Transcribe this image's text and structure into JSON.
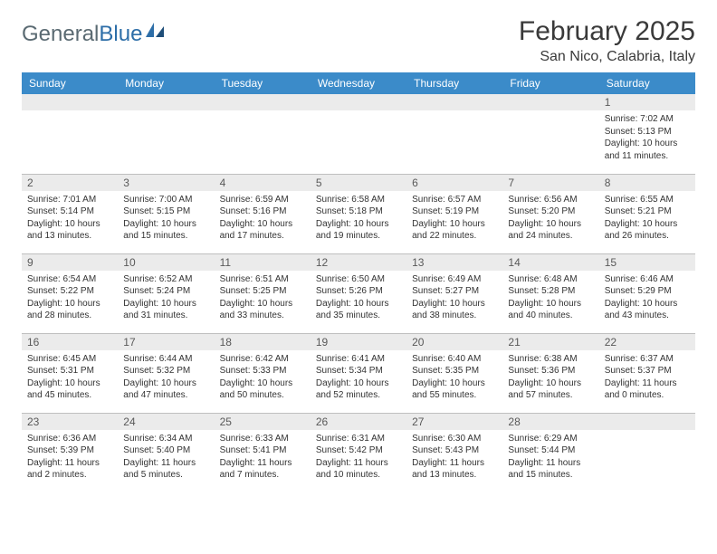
{
  "logo": {
    "text1": "General",
    "text2": "Blue"
  },
  "title": "February 2025",
  "location": "San Nico, Calabria, Italy",
  "colors": {
    "header_bg": "#3b8bc9",
    "header_text": "#ffffff",
    "daynum_bg": "#ebebeb",
    "daynum_text": "#595959",
    "body_text": "#333333",
    "border": "#bfbfbf",
    "logo_gray": "#5a6a72",
    "logo_blue": "#2d6ea8"
  },
  "day_names": [
    "Sunday",
    "Monday",
    "Tuesday",
    "Wednesday",
    "Thursday",
    "Friday",
    "Saturday"
  ],
  "weeks": [
    [
      {
        "num": "",
        "lines": []
      },
      {
        "num": "",
        "lines": []
      },
      {
        "num": "",
        "lines": []
      },
      {
        "num": "",
        "lines": []
      },
      {
        "num": "",
        "lines": []
      },
      {
        "num": "",
        "lines": []
      },
      {
        "num": "1",
        "lines": [
          "Sunrise: 7:02 AM",
          "Sunset: 5:13 PM",
          "Daylight: 10 hours and 11 minutes."
        ]
      }
    ],
    [
      {
        "num": "2",
        "lines": [
          "Sunrise: 7:01 AM",
          "Sunset: 5:14 PM",
          "Daylight: 10 hours and 13 minutes."
        ]
      },
      {
        "num": "3",
        "lines": [
          "Sunrise: 7:00 AM",
          "Sunset: 5:15 PM",
          "Daylight: 10 hours and 15 minutes."
        ]
      },
      {
        "num": "4",
        "lines": [
          "Sunrise: 6:59 AM",
          "Sunset: 5:16 PM",
          "Daylight: 10 hours and 17 minutes."
        ]
      },
      {
        "num": "5",
        "lines": [
          "Sunrise: 6:58 AM",
          "Sunset: 5:18 PM",
          "Daylight: 10 hours and 19 minutes."
        ]
      },
      {
        "num": "6",
        "lines": [
          "Sunrise: 6:57 AM",
          "Sunset: 5:19 PM",
          "Daylight: 10 hours and 22 minutes."
        ]
      },
      {
        "num": "7",
        "lines": [
          "Sunrise: 6:56 AM",
          "Sunset: 5:20 PM",
          "Daylight: 10 hours and 24 minutes."
        ]
      },
      {
        "num": "8",
        "lines": [
          "Sunrise: 6:55 AM",
          "Sunset: 5:21 PM",
          "Daylight: 10 hours and 26 minutes."
        ]
      }
    ],
    [
      {
        "num": "9",
        "lines": [
          "Sunrise: 6:54 AM",
          "Sunset: 5:22 PM",
          "Daylight: 10 hours and 28 minutes."
        ]
      },
      {
        "num": "10",
        "lines": [
          "Sunrise: 6:52 AM",
          "Sunset: 5:24 PM",
          "Daylight: 10 hours and 31 minutes."
        ]
      },
      {
        "num": "11",
        "lines": [
          "Sunrise: 6:51 AM",
          "Sunset: 5:25 PM",
          "Daylight: 10 hours and 33 minutes."
        ]
      },
      {
        "num": "12",
        "lines": [
          "Sunrise: 6:50 AM",
          "Sunset: 5:26 PM",
          "Daylight: 10 hours and 35 minutes."
        ]
      },
      {
        "num": "13",
        "lines": [
          "Sunrise: 6:49 AM",
          "Sunset: 5:27 PM",
          "Daylight: 10 hours and 38 minutes."
        ]
      },
      {
        "num": "14",
        "lines": [
          "Sunrise: 6:48 AM",
          "Sunset: 5:28 PM",
          "Daylight: 10 hours and 40 minutes."
        ]
      },
      {
        "num": "15",
        "lines": [
          "Sunrise: 6:46 AM",
          "Sunset: 5:29 PM",
          "Daylight: 10 hours and 43 minutes."
        ]
      }
    ],
    [
      {
        "num": "16",
        "lines": [
          "Sunrise: 6:45 AM",
          "Sunset: 5:31 PM",
          "Daylight: 10 hours and 45 minutes."
        ]
      },
      {
        "num": "17",
        "lines": [
          "Sunrise: 6:44 AM",
          "Sunset: 5:32 PM",
          "Daylight: 10 hours and 47 minutes."
        ]
      },
      {
        "num": "18",
        "lines": [
          "Sunrise: 6:42 AM",
          "Sunset: 5:33 PM",
          "Daylight: 10 hours and 50 minutes."
        ]
      },
      {
        "num": "19",
        "lines": [
          "Sunrise: 6:41 AM",
          "Sunset: 5:34 PM",
          "Daylight: 10 hours and 52 minutes."
        ]
      },
      {
        "num": "20",
        "lines": [
          "Sunrise: 6:40 AM",
          "Sunset: 5:35 PM",
          "Daylight: 10 hours and 55 minutes."
        ]
      },
      {
        "num": "21",
        "lines": [
          "Sunrise: 6:38 AM",
          "Sunset: 5:36 PM",
          "Daylight: 10 hours and 57 minutes."
        ]
      },
      {
        "num": "22",
        "lines": [
          "Sunrise: 6:37 AM",
          "Sunset: 5:37 PM",
          "Daylight: 11 hours and 0 minutes."
        ]
      }
    ],
    [
      {
        "num": "23",
        "lines": [
          "Sunrise: 6:36 AM",
          "Sunset: 5:39 PM",
          "Daylight: 11 hours and 2 minutes."
        ]
      },
      {
        "num": "24",
        "lines": [
          "Sunrise: 6:34 AM",
          "Sunset: 5:40 PM",
          "Daylight: 11 hours and 5 minutes."
        ]
      },
      {
        "num": "25",
        "lines": [
          "Sunrise: 6:33 AM",
          "Sunset: 5:41 PM",
          "Daylight: 11 hours and 7 minutes."
        ]
      },
      {
        "num": "26",
        "lines": [
          "Sunrise: 6:31 AM",
          "Sunset: 5:42 PM",
          "Daylight: 11 hours and 10 minutes."
        ]
      },
      {
        "num": "27",
        "lines": [
          "Sunrise: 6:30 AM",
          "Sunset: 5:43 PM",
          "Daylight: 11 hours and 13 minutes."
        ]
      },
      {
        "num": "28",
        "lines": [
          "Sunrise: 6:29 AM",
          "Sunset: 5:44 PM",
          "Daylight: 11 hours and 15 minutes."
        ]
      },
      {
        "num": "",
        "lines": []
      }
    ]
  ]
}
